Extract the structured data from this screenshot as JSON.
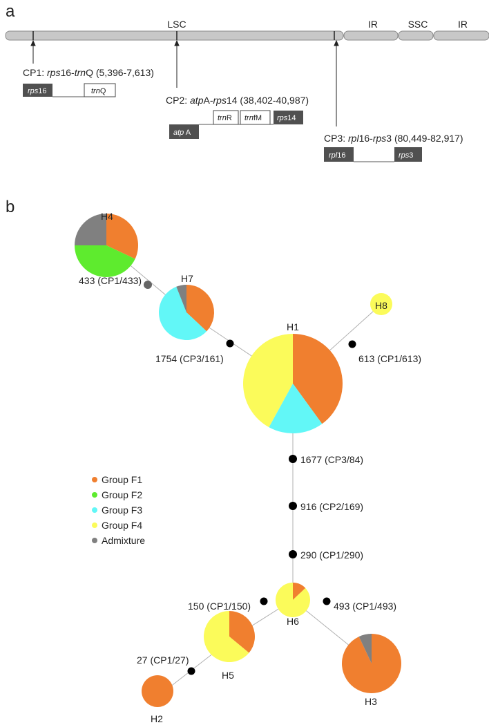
{
  "panel_a": {
    "label": "a",
    "regions": [
      "LSC",
      "IR",
      "SSC",
      "IR"
    ],
    "cp1": {
      "title_prefix": "CP1: ",
      "gene1": "rps",
      "gene1_num": "16",
      "dash": "-",
      "gene2": "trn",
      "gene2_suffix": "Q",
      "range": " (5,396-7,613)",
      "box1_it": "rps",
      "box1_num": "16",
      "box2_it": "trn",
      "box2_suf": "Q"
    },
    "cp2": {
      "title_prefix": "CP2: ",
      "gene1": "atp",
      "gene1_suffix": "A",
      "dash": "-",
      "gene2": "rps",
      "gene2_num": "14",
      "range": " (38,402-40,987)",
      "box_atp_it": "atp",
      "box_atp_suf": " A",
      "box_trnR_it": "trn",
      "box_trnR_suf": "R",
      "box_trnfM_it": "trn",
      "box_trnfM_suf": "fM",
      "box_rps_it": "rps",
      "box_rps_num": "14"
    },
    "cp3": {
      "title_prefix": "CP3: ",
      "gene1": "rpl",
      "gene1_num": "16",
      "dash": "-",
      "gene2": "rps",
      "gene2_num": "3",
      "range": " (80,449-82,917)",
      "box1_it": "rpl",
      "box1_num": "16",
      "box2_it": "rps",
      "box2_num": "3"
    }
  },
  "panel_b": {
    "label": "b",
    "colors": {
      "F1": "#F07F2F",
      "F2": "#5EEB2E",
      "F3": "#62F7F7",
      "F4": "#FBFB5A",
      "Admixture": "#808080"
    },
    "legend": [
      {
        "key": "F1",
        "label": "Group F1"
      },
      {
        "key": "F2",
        "label": "Group F2"
      },
      {
        "key": "F3",
        "label": "Group F3"
      },
      {
        "key": "F4",
        "label": "Group F4"
      },
      {
        "key": "Admixture",
        "label": "Admixture"
      }
    ],
    "haplotypes": [
      {
        "id": "H1",
        "label": "H1",
        "slices": [
          {
            "g": "F1",
            "v": 0.4
          },
          {
            "g": "F3",
            "v": 0.18
          },
          {
            "g": "F4",
            "v": 0.42
          }
        ]
      },
      {
        "id": "H2",
        "label": "H2",
        "slices": [
          {
            "g": "F1",
            "v": 1.0
          }
        ]
      },
      {
        "id": "H3",
        "label": "H3",
        "slices": [
          {
            "g": "F1",
            "v": 0.93
          },
          {
            "g": "Admixture",
            "v": 0.07
          }
        ]
      },
      {
        "id": "H4",
        "label": "H4",
        "slices": [
          {
            "g": "F1",
            "v": 0.32
          },
          {
            "g": "F2",
            "v": 0.43
          },
          {
            "g": "Admixture",
            "v": 0.25
          }
        ]
      },
      {
        "id": "H5",
        "label": "H5",
        "slices": [
          {
            "g": "F1",
            "v": 0.36
          },
          {
            "g": "F4",
            "v": 0.64
          }
        ]
      },
      {
        "id": "H6",
        "label": "H6",
        "slices": [
          {
            "g": "F1",
            "v": 0.13
          },
          {
            "g": "F4",
            "v": 0.87
          }
        ]
      },
      {
        "id": "H7",
        "label": "H7",
        "slices": [
          {
            "g": "F1",
            "v": 0.37
          },
          {
            "g": "F3",
            "v": 0.57
          },
          {
            "g": "Admixture",
            "v": 0.06
          }
        ]
      },
      {
        "id": "H8",
        "label": "H8",
        "slices": [
          {
            "g": "F4",
            "v": 1.0
          }
        ]
      }
    ],
    "mutations": [
      {
        "id": "m433",
        "label": "433 (CP1/433)"
      },
      {
        "id": "m1754",
        "label": "1754 (CP3/161)"
      },
      {
        "id": "m613",
        "label": "613 (CP1/613)"
      },
      {
        "id": "m1677",
        "label": "1677 (CP3/84)"
      },
      {
        "id": "m916",
        "label": "916 (CP2/169)"
      },
      {
        "id": "m290",
        "label": "290 (CP1/290)"
      },
      {
        "id": "m150",
        "label": "150 (CP1/150)"
      },
      {
        "id": "m493",
        "label": "493 (CP1/493)"
      },
      {
        "id": "m27",
        "label": "27 (CP1/27)"
      }
    ]
  }
}
